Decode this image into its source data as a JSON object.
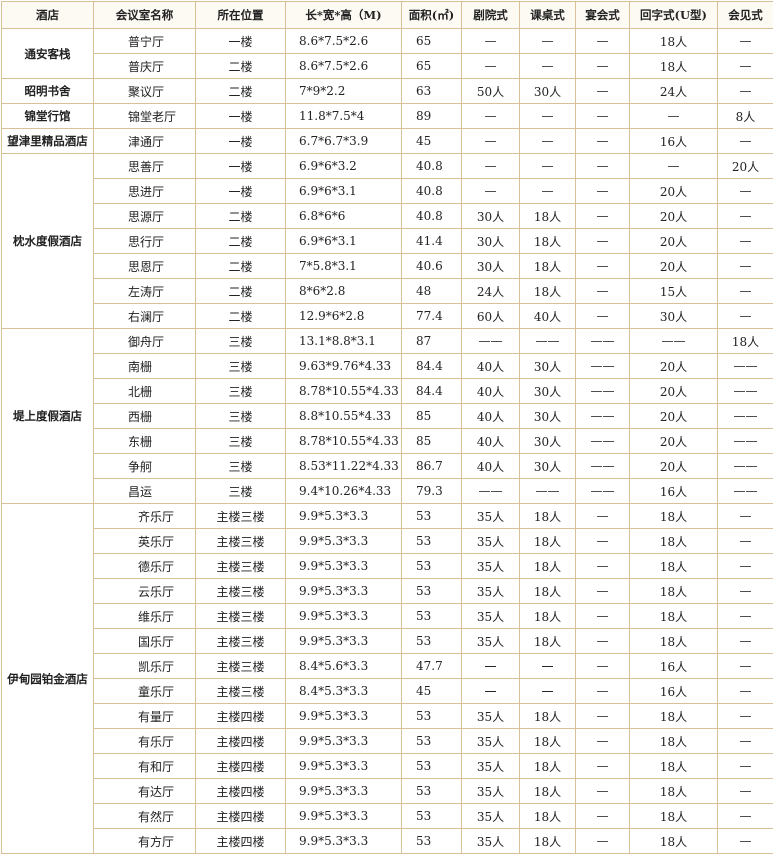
{
  "columns": [
    "酒店",
    "会议室名称",
    "所在位置",
    "长*宽*高（M)",
    "面积(㎡)",
    "剧院式",
    "课桌式",
    "宴会式",
    "回字式(U型)",
    "会见式"
  ],
  "hotels": [
    {
      "name": "通安客栈",
      "rooms": [
        [
          "普宁厅",
          "一楼",
          "8.6*7.5*2.6",
          "65",
          "—",
          "—",
          "—",
          "18人",
          "—"
        ],
        [
          "普庆厅",
          "二楼",
          "8.6*7.5*2.6",
          "65",
          "—",
          "—",
          "—",
          "18人",
          "—"
        ]
      ]
    },
    {
      "name": "昭明书舍",
      "rooms": [
        [
          "聚议厅",
          "二楼",
          "7*9*2.2",
          "63",
          "50人",
          "30人",
          "—",
          "24人",
          "—"
        ]
      ]
    },
    {
      "name": "锦堂行馆",
      "rooms": [
        [
          "锦堂老厅",
          "一楼",
          "11.8*7.5*4",
          "89",
          "—",
          "—",
          "—",
          "—",
          "8人"
        ]
      ]
    },
    {
      "name": "望津里精品酒店",
      "rooms": [
        [
          "津通厅",
          "一楼",
          "6.7*6.7*3.9",
          "45",
          "—",
          "—",
          "—",
          "16人",
          "—"
        ]
      ]
    },
    {
      "name": "枕水度假酒店",
      "rooms": [
        [
          "思善厅",
          "一楼",
          "6.9*6*3.2",
          "40.8",
          "—",
          "—",
          "—",
          "—",
          "20人"
        ],
        [
          "思进厅",
          "一楼",
          "6.9*6*3.1",
          "40.8",
          "—",
          "—",
          "—",
          "20人",
          "—"
        ],
        [
          "思源厅",
          "二楼",
          "6.8*6*6",
          "40.8",
          "30人",
          "18人",
          "—",
          "20人",
          "—"
        ],
        [
          "思行厅",
          "二楼",
          "6.9*6*3.1",
          "41.4",
          "30人",
          "18人",
          "—",
          "20人",
          "—"
        ],
        [
          "思恩厅",
          "二楼",
          "7*5.8*3.1",
          "40.6",
          "30人",
          "18人",
          "—",
          "20人",
          "—"
        ],
        [
          "左涛厅",
          "二楼",
          "8*6*2.8",
          "48",
          "24人",
          "18人",
          "—",
          "15人",
          "—"
        ],
        [
          "右澜厅",
          "二楼",
          "12.9*6*2.8",
          "77.4",
          "60人",
          "40人",
          "—",
          "30人",
          "—"
        ]
      ]
    },
    {
      "name": "堤上度假酒店",
      "rooms": [
        [
          "御舟厅",
          "三楼",
          "13.1*8.8*3.1",
          "87",
          "——",
          "——",
          "——",
          "——",
          "18人"
        ],
        [
          "南栅",
          "三楼",
          "9.63*9.76*4.33",
          "84.4",
          "40人",
          "30人",
          "——",
          "20人",
          "——"
        ],
        [
          "北栅",
          "三楼",
          "8.78*10.55*4.33",
          "84.4",
          "40人",
          "30人",
          "——",
          "20人",
          "——"
        ],
        [
          "西栅",
          "三楼",
          "8.8*10.55*4.33",
          "85",
          "40人",
          "30人",
          "——",
          "20人",
          "——"
        ],
        [
          "东栅",
          "三楼",
          "8.78*10.55*4.33",
          "85",
          "40人",
          "30人",
          "——",
          "20人",
          "——"
        ],
        [
          "争舸",
          "三楼",
          "8.53*11.22*4.33",
          "86.7",
          "40人",
          "30人",
          "——",
          "20人",
          "——"
        ],
        [
          "昌运",
          "三楼",
          "9.4*10.26*4.33",
          "79.3",
          "——",
          "——",
          "——",
          "16人",
          "——"
        ]
      ]
    },
    {
      "name": "伊甸园铂金酒店",
      "indent": true,
      "rooms": [
        [
          "齐乐厅",
          "主楼三楼",
          "9.9*5.3*3.3",
          "53",
          "35人",
          "18人",
          "—",
          "18人",
          "—"
        ],
        [
          "英乐厅",
          "主楼三楼",
          "9.9*5.3*3.3",
          "53",
          "35人",
          "18人",
          "—",
          "18人",
          "—"
        ],
        [
          "德乐厅",
          "主楼三楼",
          "9.9*5.3*3.3",
          "53",
          "35人",
          "18人",
          "—",
          "18人",
          "—"
        ],
        [
          "云乐厅",
          "主楼三楼",
          "9.9*5.3*3.3",
          "53",
          "35人",
          "18人",
          "—",
          "18人",
          "—"
        ],
        [
          "维乐厅",
          "主楼三楼",
          "9.9*5.3*3.3",
          "53",
          "35人",
          "18人",
          "—",
          "18人",
          "—"
        ],
        [
          "国乐厅",
          "主楼三楼",
          "9.9*5.3*3.3",
          "53",
          "35人",
          "18人",
          "—",
          "18人",
          "—"
        ],
        [
          "凯乐厅",
          "主楼三楼",
          "8.4*5.6*3.3",
          "47.7",
          "一",
          "一",
          "—",
          "16人",
          "—"
        ],
        [
          "童乐厅",
          "主楼三楼",
          "8.4*5.3*3.3",
          "45",
          "一",
          "一",
          "—",
          "16人",
          "—"
        ],
        [
          "有量厅",
          "主楼四楼",
          "9.9*5.3*3.3",
          "53",
          "35人",
          "18人",
          "—",
          "18人",
          "—"
        ],
        [
          "有乐厅",
          "主楼四楼",
          "9.9*5.3*3.3",
          "53",
          "35人",
          "18人",
          "—",
          "18人",
          "—"
        ],
        [
          "有和厅",
          "主楼四楼",
          "9.9*5.3*3.3",
          "53",
          "35人",
          "18人",
          "—",
          "18人",
          "—"
        ],
        [
          "有达厅",
          "主楼四楼",
          "9.9*5.3*3.3",
          "53",
          "35人",
          "18人",
          "—",
          "18人",
          "—"
        ],
        [
          "有然厅",
          "主楼四楼",
          "9.9*5.3*3.3",
          "53",
          "35人",
          "18人",
          "—",
          "18人",
          "—"
        ],
        [
          "有方厅",
          "主楼四楼",
          "9.9*5.3*3.3",
          "53",
          "35人",
          "18人",
          "—",
          "18人",
          "—"
        ]
      ]
    }
  ]
}
